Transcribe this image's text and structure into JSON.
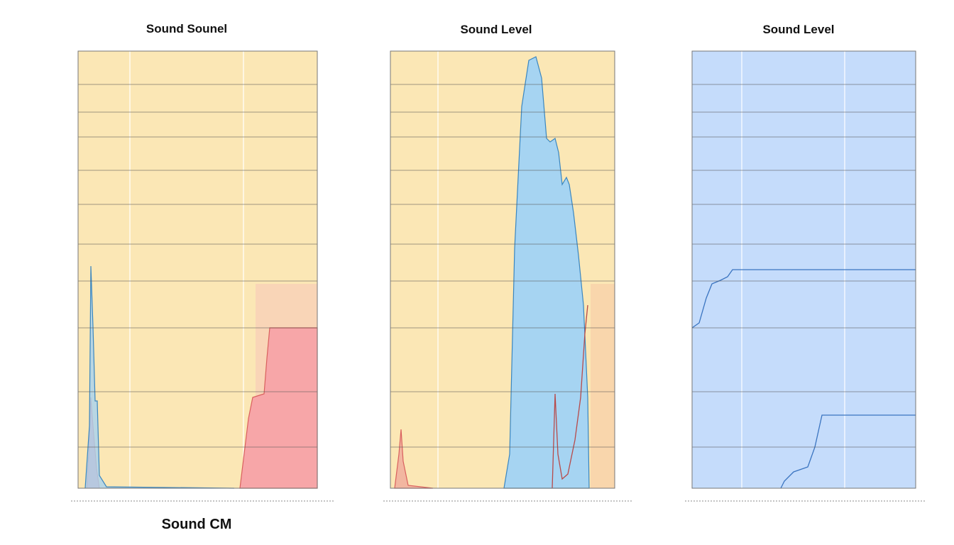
{
  "panels": [
    {
      "title": "Sound Sounel"
    },
    {
      "title": "Sound Level"
    },
    {
      "title": "Sound Level"
    }
  ],
  "caption": "Sound CM"
}
